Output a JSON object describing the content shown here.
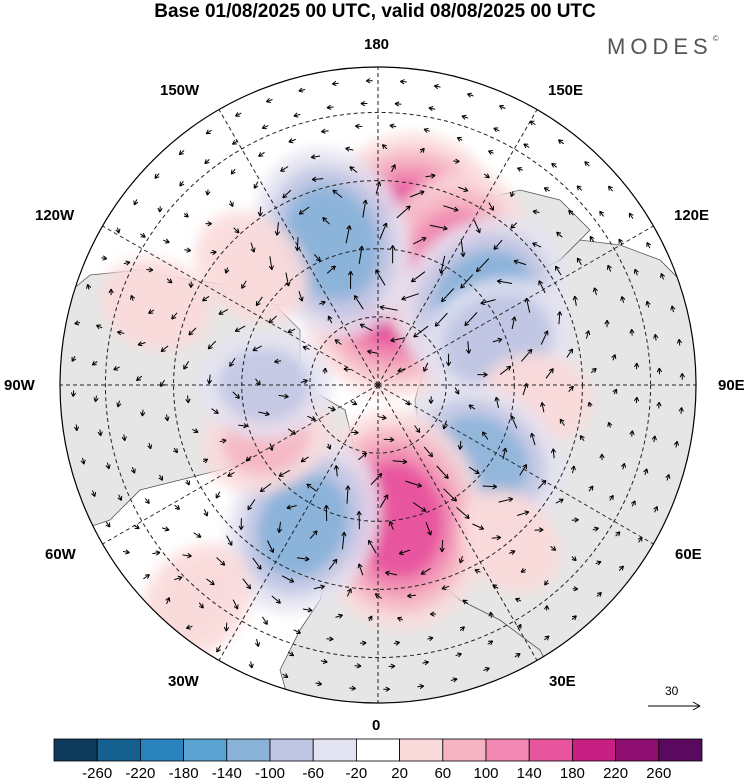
{
  "title": "Base 01/08/2025 00 UTC, valid 08/08/2025 00 UTC",
  "logo": "MODES",
  "logo_mark": "©",
  "longitude_labels": {
    "lon_180": "180",
    "lon_150e": "150E",
    "lon_120e": "120E",
    "lon_90e": "90E",
    "lon_60e": "60E",
    "lon_30e": "30E",
    "lon_0": "0",
    "lon_30w": "30W",
    "lon_60w": "60W",
    "lon_90w": "90W",
    "lon_120w": "120W",
    "lon_150w": "150W"
  },
  "reference_vector": "30",
  "colorbar": {
    "labels": [
      "-260",
      "-220",
      "-180",
      "-140",
      "-100",
      "-60",
      "-20",
      "20",
      "60",
      "100",
      "140",
      "180",
      "220",
      "260"
    ],
    "colors": [
      "#0e3a5c",
      "#15608f",
      "#2a83bd",
      "#5aa2cf",
      "#8bb3d9",
      "#bfc6e3",
      "#e4e3f1",
      "#ffffff",
      "#fadada",
      "#f6b4c2",
      "#f189b2",
      "#e8559f",
      "#c81f84",
      "#8d0f6f",
      "#5a0a5e"
    ]
  },
  "anomalies": [
    {
      "lon": 168,
      "lat": 63,
      "value": 200
    },
    {
      "lon": 150,
      "lat": 58,
      "value": 110
    },
    {
      "lon": -162,
      "lat": 57,
      "value": -120
    },
    {
      "lon": 130,
      "lat": 60,
      "value": -110
    },
    {
      "lon": 110,
      "lat": 62,
      "value": -80
    },
    {
      "lon": -133,
      "lat": 52,
      "value": 50
    },
    {
      "lon": -110,
      "lat": 38,
      "value": 40
    },
    {
      "lon": 85,
      "lat": 55,
      "value": 40
    },
    {
      "lon": 55,
      "lat": 62,
      "value": -100
    },
    {
      "lon": 8,
      "lat": 60,
      "value": 150
    },
    {
      "lon": -28,
      "lat": 55,
      "value": -110
    },
    {
      "lon": -65,
      "lat": 63,
      "value": 60
    },
    {
      "lon": -40,
      "lat": 28,
      "value": 50
    },
    {
      "lon": -90,
      "lat": 65,
      "value": -60
    },
    {
      "lon": 40,
      "lat": 45,
      "value": 40
    }
  ]
}
